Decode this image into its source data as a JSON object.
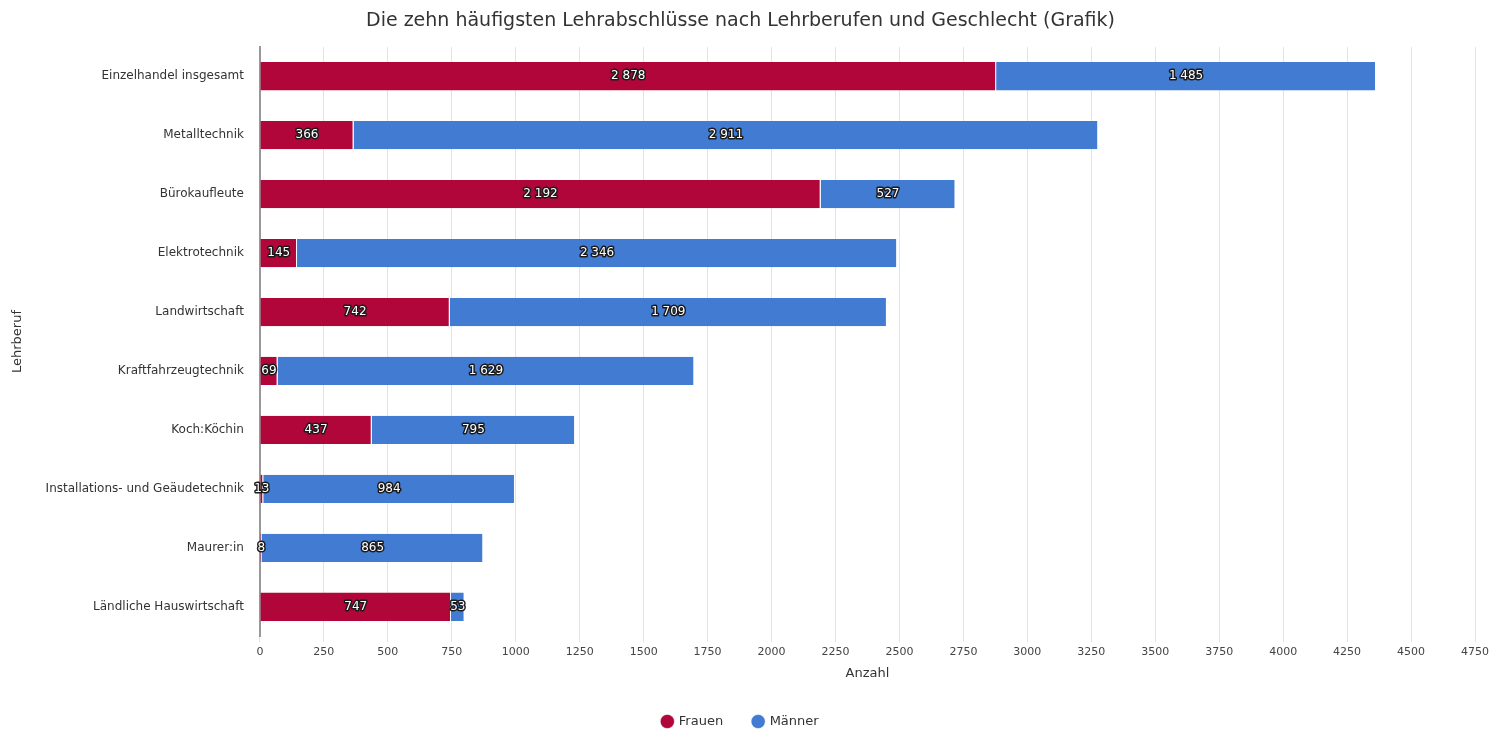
{
  "chart_data": {
    "type": "bar",
    "orientation": "horizontal",
    "stacked": true,
    "title": "Die zehn häufigsten Lehrabschlüsse nach Lehrberufen und Geschlecht (Grafik)",
    "xlabel": "Anzahl",
    "ylabel": "Lehrberuf",
    "categories": [
      "Einzelhandel insgesamt",
      "Metalltechnik",
      "Bürokaufleute",
      "Elektrotechnik",
      "Landwirtschaft",
      "Kraftfahrzeugtechnik",
      "Koch:Köchin",
      "Installations- und Geäudetechnik",
      "Maurer:in",
      "Ländliche Hauswirtschaft"
    ],
    "series": [
      {
        "name": "Frauen",
        "color": "#b0063a",
        "values": [
          2878,
          366,
          2192,
          145,
          742,
          69,
          437,
          13,
          8,
          747
        ],
        "value_labels": [
          "2 878",
          "366",
          "2 192",
          "145",
          "742",
          "69",
          "437",
          "13",
          "8",
          "747"
        ]
      },
      {
        "name": "Männer",
        "color": "#427bd2",
        "values": [
          1485,
          2911,
          527,
          2346,
          1709,
          1629,
          795,
          984,
          865,
          53
        ],
        "value_labels": [
          "1 485",
          "2 911",
          "527",
          "2 346",
          "1 709",
          "1 629",
          "795",
          "984",
          "865",
          "53"
        ]
      }
    ],
    "xlim": [
      0,
      4750
    ],
    "xticks": [
      0,
      250,
      500,
      750,
      1000,
      1250,
      1500,
      1750,
      2000,
      2250,
      2500,
      2750,
      3000,
      3250,
      3500,
      3750,
      4000,
      4250,
      4500,
      4750
    ],
    "grid": "x",
    "legend": "bottom"
  }
}
